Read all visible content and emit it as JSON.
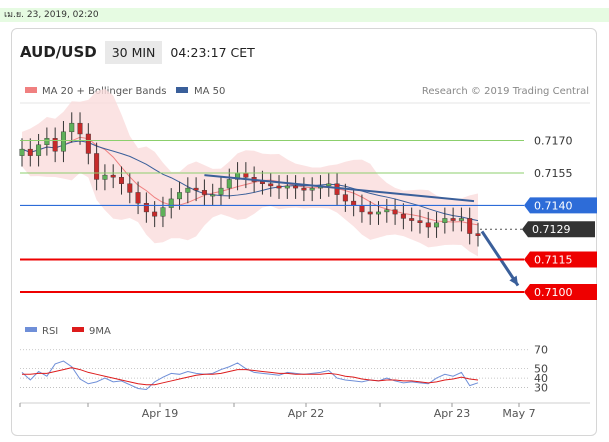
{
  "timestamp": "เม.ย. 23, 2019, 02:20",
  "header": {
    "symbol": "AUD/USD",
    "timeframe": "30 MIN",
    "time": "04:23:17 CET"
  },
  "legend": {
    "ma20_bb": "MA 20 + Bollinger Bands",
    "ma50": "MA 50",
    "credit": "Research © 2019 Trading Central"
  },
  "colors": {
    "bollinger_fill": "#fadcdc",
    "ma20": "#f08080",
    "ma50": "#3a5f9a",
    "trendline": "#3a5f9a",
    "support_red": "#ee0000",
    "green_level": "#8ccf6c",
    "blue_level": "#2d6cd8",
    "current_price": "#333333",
    "candle_up": "#5fb05a",
    "candle_down": "#c62a2a",
    "rsi": "#6f8fd8",
    "rsi_ma": "#dd1c1c"
  },
  "chart_data": {
    "type": "line",
    "title": "AUD/USD 30 MIN",
    "x_labels": [
      "Apr 19",
      "Apr 22",
      "Apr 23",
      "May 7"
    ],
    "ylim": [
      0.7088,
      0.7185
    ],
    "price_series": [
      0.7166,
      0.7163,
      0.7168,
      0.7171,
      0.7165,
      0.7174,
      0.7178,
      0.7173,
      0.7164,
      0.7152,
      0.7154,
      0.7153,
      0.715,
      0.7146,
      0.7141,
      0.7137,
      0.7135,
      0.7139,
      0.7143,
      0.7146,
      0.7148,
      0.7147,
      0.7145,
      0.7145,
      0.7148,
      0.7152,
      0.7155,
      0.7153,
      0.7151,
      0.715,
      0.7149,
      0.7148,
      0.7149,
      0.7148,
      0.7147,
      0.7148,
      0.7149,
      0.715,
      0.7145,
      0.7142,
      0.714,
      0.7137,
      0.7136,
      0.7137,
      0.7138,
      0.7136,
      0.7134,
      0.7133,
      0.7132,
      0.713,
      0.7132,
      0.7134,
      0.7133,
      0.7134,
      0.7127,
      0.7126
    ],
    "levels": [
      {
        "value": 0.717,
        "label": "0.7170",
        "style": "green"
      },
      {
        "value": 0.7155,
        "label": "0.7155",
        "style": "green"
      },
      {
        "value": 0.714,
        "label": "0.7140",
        "style": "blue"
      },
      {
        "value": 0.7129,
        "label": "0.7129",
        "style": "current"
      },
      {
        "value": 0.7115,
        "label": "0.7115",
        "style": "red"
      },
      {
        "value": 0.71,
        "label": "0.7100",
        "style": "red"
      }
    ],
    "rsi": {
      "legend": [
        "RSI",
        "9MA"
      ],
      "ticks": [
        70,
        50,
        40,
        30
      ],
      "ylim": [
        20,
        75
      ],
      "values": [
        46,
        38,
        47,
        42,
        55,
        58,
        52,
        39,
        34,
        36,
        40,
        36,
        37,
        33,
        29,
        28,
        36,
        41,
        45,
        44,
        47,
        45,
        44,
        45,
        49,
        52,
        56,
        50,
        46,
        45,
        44,
        43,
        46,
        45,
        44,
        45,
        46,
        48,
        40,
        38,
        37,
        36,
        38,
        37,
        40,
        37,
        35,
        36,
        35,
        34,
        40,
        44,
        42,
        46,
        32,
        35
      ],
      "ma_values": [
        44,
        44,
        45,
        45,
        47,
        49,
        51,
        49,
        46,
        44,
        42,
        40,
        38,
        36,
        34,
        33,
        33,
        35,
        37,
        39,
        41,
        43,
        44,
        44,
        45,
        47,
        49,
        49,
        48,
        47,
        46,
        45,
        45,
        44,
        44,
        44,
        44,
        45,
        44,
        42,
        41,
        39,
        38,
        37,
        38,
        38,
        37,
        37,
        36,
        35,
        36,
        38,
        39,
        41,
        39,
        38
      ]
    }
  }
}
